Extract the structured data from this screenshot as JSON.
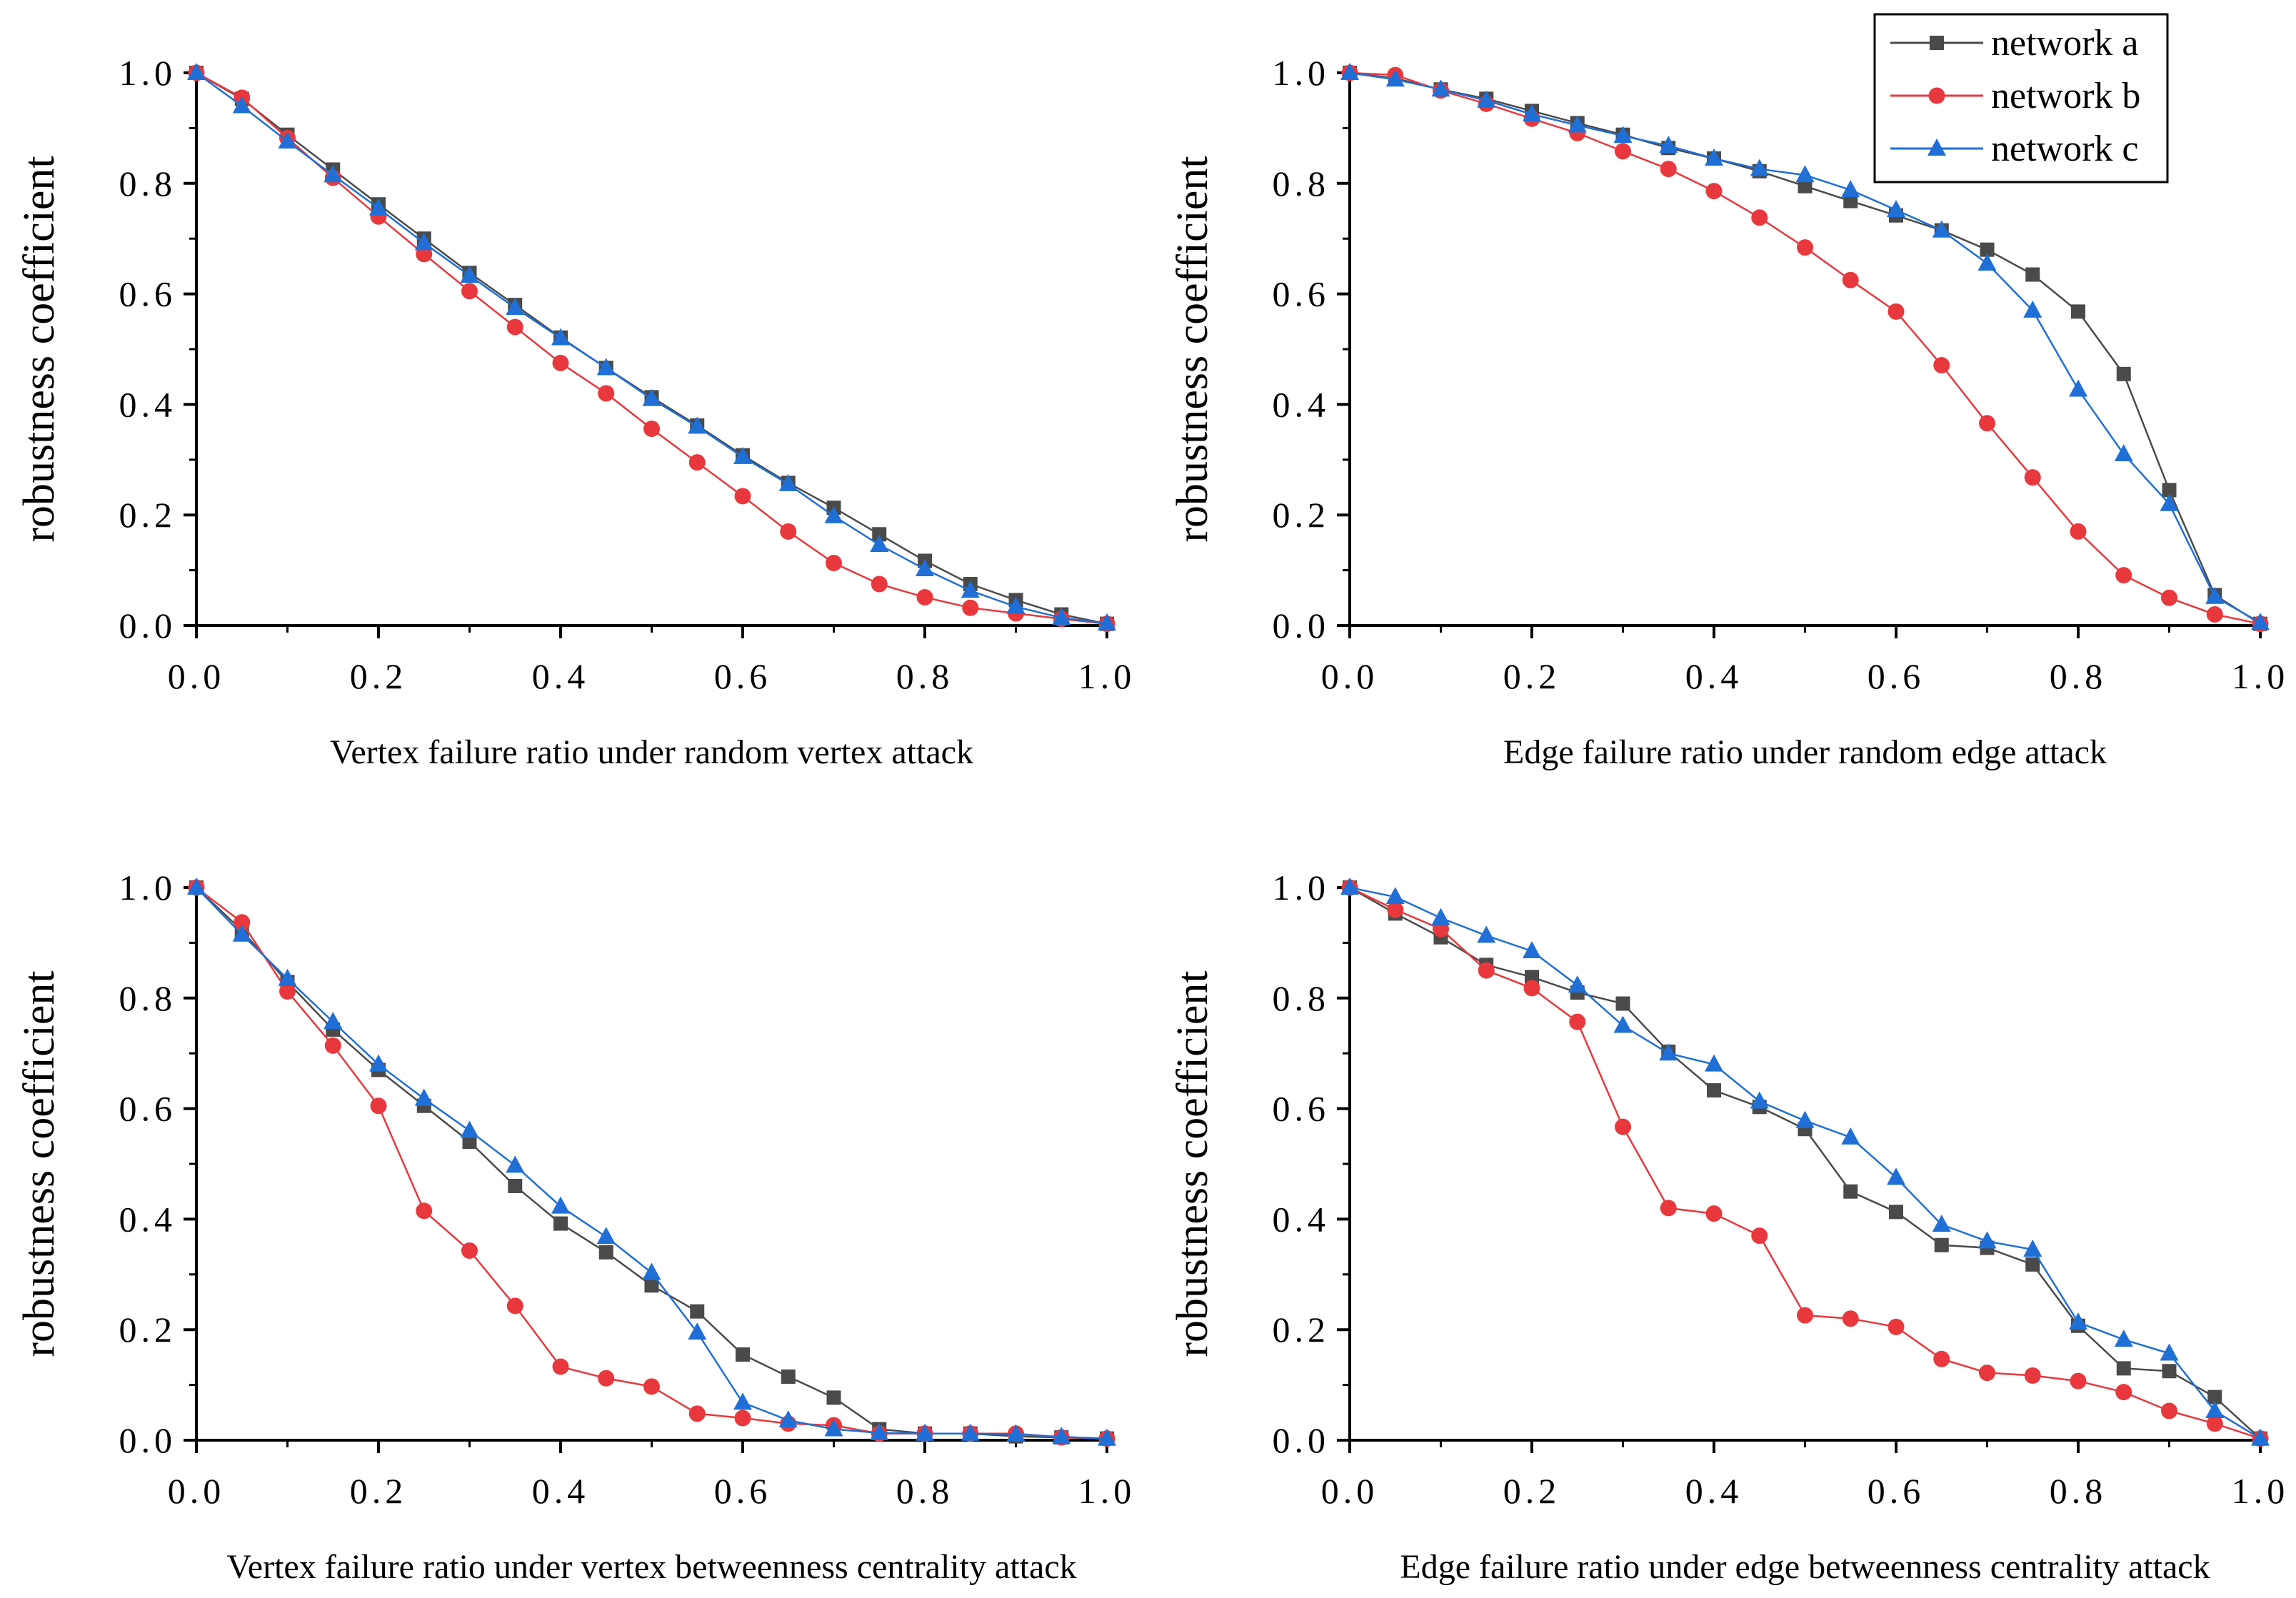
{
  "legend": {
    "position": "top-right",
    "entries": [
      {
        "name": "network a",
        "color": "#4a4a4a",
        "marker": "square"
      },
      {
        "name": "network b",
        "color": "#e8383d",
        "marker": "circle"
      },
      {
        "name": "network c",
        "color": "#1f6fd6",
        "marker": "triangle"
      }
    ]
  },
  "chart_data": [
    {
      "type": "line",
      "title": "",
      "xlabel": "Vertex failure ratio under random vertex attack",
      "ylabel": "robustness coefficient",
      "xlim": [
        0,
        1
      ],
      "ylim": [
        0,
        1
      ],
      "xticks": [
        "0.0",
        "0.2",
        "0.4",
        "0.6",
        "0.8",
        "1.0"
      ],
      "yticks": [
        "0.0",
        "0.2",
        "0.4",
        "0.6",
        "0.8",
        "1.0"
      ],
      "x": [
        0,
        0.05,
        0.1,
        0.15,
        0.2,
        0.25,
        0.3,
        0.35,
        0.4,
        0.45,
        0.5,
        0.55,
        0.6,
        0.65,
        0.7,
        0.75,
        0.8,
        0.85,
        0.9,
        0.95,
        1.0
      ],
      "series": [
        {
          "name": "network a",
          "values": [
            1.0,
            0.953,
            0.888,
            0.825,
            0.762,
            0.7,
            0.638,
            0.58,
            0.521,
            0.466,
            0.413,
            0.362,
            0.308,
            0.258,
            0.213,
            0.165,
            0.117,
            0.075,
            0.046,
            0.02,
            0.003
          ]
        },
        {
          "name": "network b",
          "values": [
            1.0,
            0.955,
            0.882,
            0.81,
            0.74,
            0.672,
            0.605,
            0.54,
            0.475,
            0.42,
            0.356,
            0.295,
            0.234,
            0.17,
            0.113,
            0.075,
            0.051,
            0.032,
            0.022,
            0.012,
            0.003
          ]
        },
        {
          "name": "network c",
          "values": [
            1.0,
            0.94,
            0.876,
            0.815,
            0.755,
            0.692,
            0.633,
            0.575,
            0.52,
            0.466,
            0.41,
            0.36,
            0.305,
            0.256,
            0.198,
            0.146,
            0.102,
            0.063,
            0.034,
            0.014,
            0.004
          ]
        }
      ]
    },
    {
      "type": "line",
      "title": "",
      "xlabel": "Edge failure ratio under random edge attack",
      "ylabel": "robustness coefficient",
      "xlim": [
        0,
        1
      ],
      "ylim": [
        0,
        1
      ],
      "xticks": [
        "0.0",
        "0.2",
        "0.4",
        "0.6",
        "0.8",
        "1.0"
      ],
      "yticks": [
        "0.0",
        "0.2",
        "0.4",
        "0.6",
        "0.8",
        "1.0"
      ],
      "x": [
        0,
        0.05,
        0.1,
        0.15,
        0.2,
        0.25,
        0.3,
        0.35,
        0.4,
        0.45,
        0.5,
        0.55,
        0.6,
        0.65,
        0.7,
        0.75,
        0.8,
        0.85,
        0.9,
        0.95,
        1.0
      ],
      "series": [
        {
          "name": "network a",
          "values": [
            1.0,
            0.99,
            0.97,
            0.953,
            0.931,
            0.909,
            0.888,
            0.864,
            0.845,
            0.822,
            0.795,
            0.768,
            0.742,
            0.715,
            0.68,
            0.635,
            0.568,
            0.455,
            0.245,
            0.055,
            0.003
          ]
        },
        {
          "name": "network b",
          "values": [
            1.0,
            0.996,
            0.968,
            0.944,
            0.917,
            0.891,
            0.858,
            0.826,
            0.786,
            0.738,
            0.684,
            0.625,
            0.568,
            0.471,
            0.366,
            0.268,
            0.17,
            0.091,
            0.05,
            0.02,
            0.003
          ]
        },
        {
          "name": "network c",
          "values": [
            1.0,
            0.988,
            0.97,
            0.95,
            0.925,
            0.905,
            0.886,
            0.868,
            0.845,
            0.826,
            0.815,
            0.788,
            0.752,
            0.715,
            0.655,
            0.57,
            0.427,
            0.31,
            0.22,
            0.052,
            0.005
          ]
        }
      ]
    },
    {
      "type": "line",
      "title": "",
      "xlabel": "Vertex failure ratio under vertex betweenness centrality attack",
      "ylabel": "robustness coefficient",
      "xlim": [
        0,
        1
      ],
      "ylim": [
        0,
        1
      ],
      "xticks": [
        "0.0",
        "0.2",
        "0.4",
        "0.6",
        "0.8",
        "1.0"
      ],
      "yticks": [
        "0.0",
        "0.2",
        "0.4",
        "0.6",
        "0.8",
        "1.0"
      ],
      "x": [
        0,
        0.05,
        0.1,
        0.15,
        0.2,
        0.25,
        0.3,
        0.35,
        0.4,
        0.45,
        0.5,
        0.55,
        0.6,
        0.65,
        0.7,
        0.75,
        0.8,
        0.85,
        0.9,
        0.95,
        1.0
      ],
      "series": [
        {
          "name": "network a",
          "values": [
            1.0,
            0.922,
            0.829,
            0.743,
            0.67,
            0.605,
            0.54,
            0.46,
            0.392,
            0.34,
            0.28,
            0.233,
            0.155,
            0.115,
            0.077,
            0.02,
            0.012,
            0.012,
            0.007,
            0.005,
            0.003
          ]
        },
        {
          "name": "network b",
          "values": [
            1.0,
            0.937,
            0.812,
            0.714,
            0.605,
            0.415,
            0.343,
            0.243,
            0.133,
            0.112,
            0.097,
            0.048,
            0.04,
            0.03,
            0.027,
            0.012,
            0.012,
            0.012,
            0.012,
            0.005,
            0.003
          ]
        },
        {
          "name": "network c",
          "values": [
            1.0,
            0.915,
            0.835,
            0.757,
            0.68,
            0.618,
            0.56,
            0.497,
            0.423,
            0.368,
            0.303,
            0.195,
            0.068,
            0.036,
            0.02,
            0.013,
            0.012,
            0.012,
            0.011,
            0.006,
            0.003
          ]
        }
      ]
    },
    {
      "type": "line",
      "title": "",
      "xlabel": "Edge failure ratio under edge betweenness centrality attack",
      "ylabel": "robustness coefficient",
      "xlim": [
        0,
        1
      ],
      "ylim": [
        0,
        1
      ],
      "xticks": [
        "0.0",
        "0.2",
        "0.4",
        "0.6",
        "0.8",
        "1.0"
      ],
      "yticks": [
        "0.0",
        "0.2",
        "0.4",
        "0.6",
        "0.8",
        "1.0"
      ],
      "x": [
        0,
        0.05,
        0.1,
        0.15,
        0.2,
        0.25,
        0.3,
        0.35,
        0.4,
        0.45,
        0.5,
        0.55,
        0.6,
        0.65,
        0.7,
        0.75,
        0.8,
        0.85,
        0.9,
        0.95,
        1.0
      ],
      "series": [
        {
          "name": "network a",
          "values": [
            1.0,
            0.953,
            0.91,
            0.86,
            0.838,
            0.81,
            0.79,
            0.703,
            0.633,
            0.603,
            0.563,
            0.45,
            0.413,
            0.353,
            0.348,
            0.318,
            0.207,
            0.13,
            0.125,
            0.078,
            0.003
          ]
        },
        {
          "name": "network b",
          "values": [
            1.0,
            0.96,
            0.925,
            0.85,
            0.818,
            0.757,
            0.567,
            0.42,
            0.41,
            0.37,
            0.226,
            0.22,
            0.205,
            0.147,
            0.122,
            0.117,
            0.107,
            0.087,
            0.053,
            0.03,
            0.003
          ]
        },
        {
          "name": "network c",
          "values": [
            1.0,
            0.983,
            0.945,
            0.913,
            0.885,
            0.823,
            0.75,
            0.7,
            0.68,
            0.613,
            0.578,
            0.548,
            0.475,
            0.39,
            0.36,
            0.345,
            0.213,
            0.182,
            0.157,
            0.053,
            0.003
          ]
        }
      ]
    }
  ]
}
